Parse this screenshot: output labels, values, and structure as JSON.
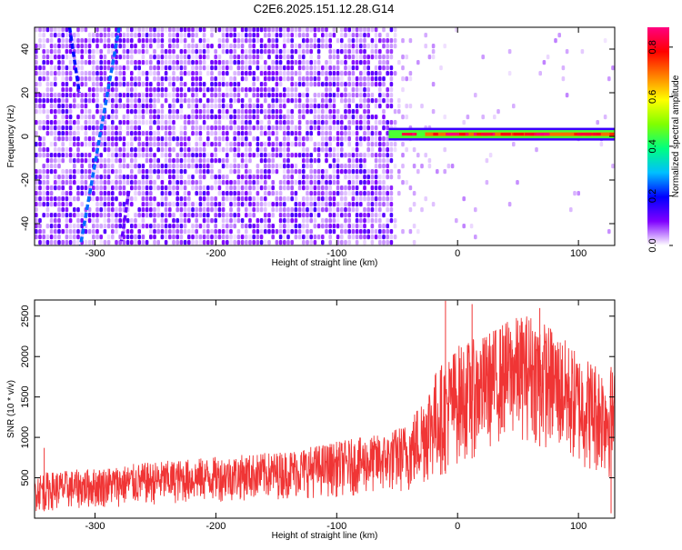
{
  "page_title": "C2E6.2025.151.12.28.G14",
  "chart_data": [
    {
      "type": "heatmap",
      "title": "C2E6.2025.151.12.28.G14",
      "xlabel": "Height of straight line (km)",
      "ylabel": "Frequency (Hz)",
      "xlim": [
        -350,
        130
      ],
      "ylim": [
        -50,
        50
      ],
      "xticks": [
        -300,
        -200,
        -100,
        0,
        100
      ],
      "xtick_labels": [
        "-300",
        "-200",
        "-100",
        "0",
        "100"
      ],
      "yticks": [
        -40,
        -20,
        0,
        20,
        40
      ],
      "ytick_labels": [
        "-40",
        "-20",
        "0",
        "20",
        "40"
      ],
      "colorbar": {
        "label": "Normalized spectral amplitude",
        "range": [
          0,
          0.88
        ],
        "ticks": [
          0.0,
          0.2,
          0.4,
          0.6,
          0.8
        ],
        "tick_labels": [
          "0.0",
          "0.2",
          "0.4",
          "0.6",
          "0.8"
        ],
        "colors": [
          "#ffffff",
          "#7f00ff",
          "#0000ff",
          "#00bfff",
          "#00ff80",
          "#80ff00",
          "#ffff00",
          "#ff8000",
          "#ff0000",
          "#ff0080"
        ]
      },
      "features": {
        "noise_region_x": [
          -350,
          -55
        ],
        "noise_level": 0.12,
        "line_segments": [
          {
            "x": [
              -321,
              -313
            ],
            "y": [
              50,
              20
            ],
            "level": 0.2
          },
          {
            "x": [
              -280,
              -312
            ],
            "y": [
              50,
              -50
            ],
            "level": 0.25
          },
          {
            "x": [
              -272,
              -278
            ],
            "y": [
              -25,
              -48
            ],
            "level": 0.12
          }
        ],
        "dominant_band": {
          "x": [
            -57,
            130
          ],
          "y": 1,
          "peak_level": 0.88
        }
      }
    },
    {
      "type": "line",
      "xlabel": "Height of straight line (km)",
      "ylabel": "SNR (10 * v/v)",
      "xlim": [
        -350,
        130
      ],
      "ylim": [
        0,
        2700
      ],
      "xticks": [
        -300,
        -200,
        -100,
        0,
        100
      ],
      "xtick_labels": [
        "-300",
        "-200",
        "-100",
        "0",
        "100"
      ],
      "yticks": [
        500,
        1000,
        1500,
        2000,
        2500
      ],
      "ytick_labels": [
        "500",
        "1000",
        "1500",
        "2000",
        "2500"
      ],
      "color": "#f03535",
      "envelope": {
        "x": [
          -350,
          -300,
          -250,
          -200,
          -150,
          -100,
          -60,
          -40,
          -20,
          0,
          20,
          40,
          60,
          80,
          100,
          130
        ],
        "low": [
          80,
          120,
          160,
          200,
          230,
          260,
          300,
          300,
          450,
          650,
          800,
          950,
          950,
          800,
          600,
          450
        ],
        "high": [
          560,
          620,
          700,
          760,
          820,
          950,
          1050,
          1200,
          1800,
          2150,
          2250,
          2450,
          2550,
          2350,
          2050,
          1850
        ]
      },
      "spikes": [
        {
          "x": -342,
          "y": 870
        },
        {
          "x": -10,
          "y": 2690
        },
        {
          "x": 12,
          "y": 2650
        },
        {
          "x": 68,
          "y": 2600
        },
        {
          "x": 127,
          "y": 60
        }
      ]
    }
  ]
}
